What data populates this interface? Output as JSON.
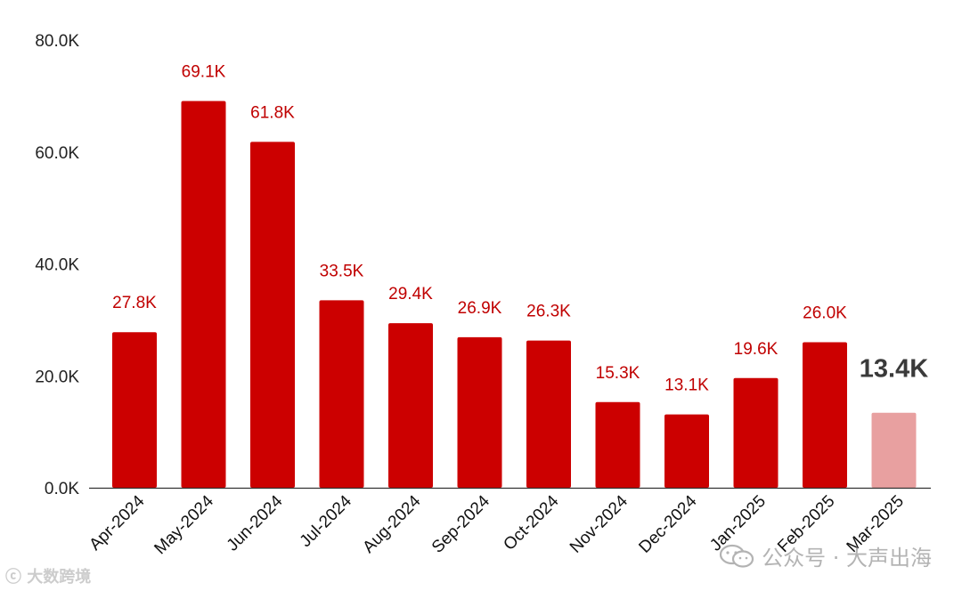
{
  "chart_data": {
    "type": "bar",
    "categories": [
      "Apr-2024",
      "May-2024",
      "Jun-2024",
      "Jul-2024",
      "Aug-2024",
      "Sep-2024",
      "Oct-2024",
      "Nov-2024",
      "Dec-2024",
      "Jan-2025",
      "Feb-2025",
      "Mar-2025"
    ],
    "values": [
      27.8,
      69.1,
      61.8,
      33.5,
      29.4,
      26.9,
      26.3,
      15.3,
      13.1,
      19.6,
      26.0,
      13.4
    ],
    "data_labels": [
      "27.8K",
      "69.1K",
      "61.8K",
      "33.5K",
      "29.4K",
      "26.9K",
      "26.3K",
      "15.3K",
      "13.1K",
      "19.6K",
      "26.0K",
      "13.4K"
    ],
    "y_tick_values": [
      0,
      20,
      40,
      60,
      80
    ],
    "y_tick_labels": [
      "0.0K",
      "20.0K",
      "40.0K",
      "60.0K",
      "80.0K"
    ],
    "ylim": [
      0,
      80
    ],
    "highlight_index": 11,
    "grid": false,
    "legend": "none",
    "title": "",
    "xlabel": "",
    "ylabel": "",
    "bar_color": "#cc0000",
    "highlight_bar_color": "#e8a0a0",
    "label_color": "#c00000",
    "highlight_label_color": "#3a3a3a"
  },
  "watermarks": {
    "left_text": "大数跨境",
    "right_text": "公众号 · 大声出海",
    "left_icon": "logo-mark",
    "right_icon": "wechat-icon"
  }
}
